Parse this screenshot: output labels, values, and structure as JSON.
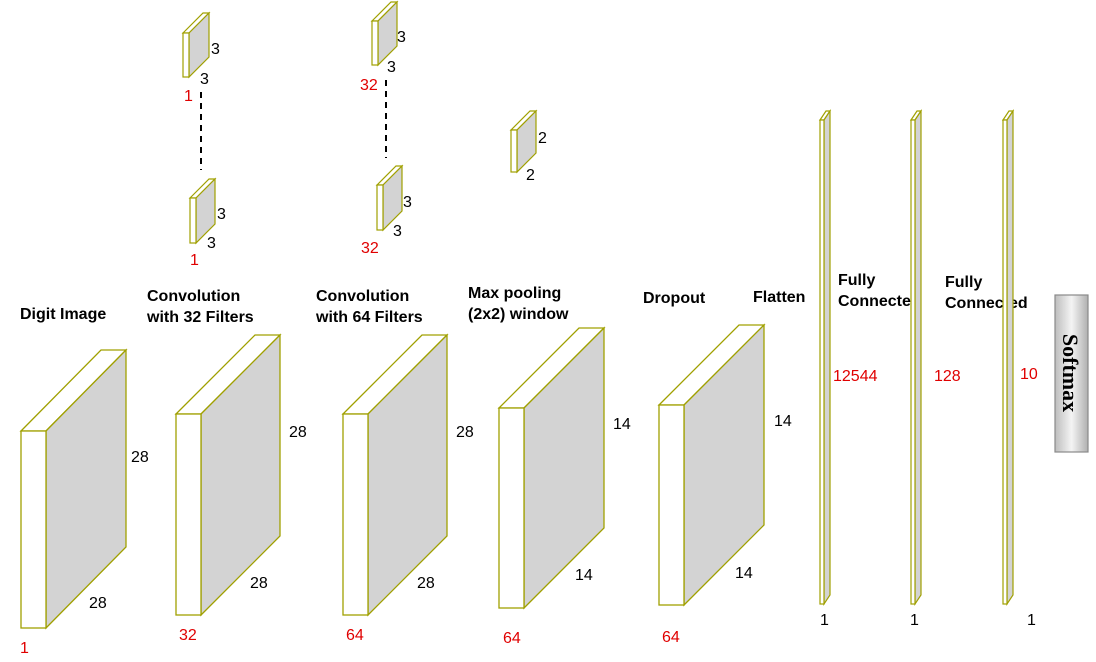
{
  "labels": {
    "digit_image": "Digit Image",
    "conv32_line1": "Convolution",
    "conv32_line2": "with 32 Filters",
    "conv64_line1": "Convolution",
    "conv64_line2": "with 64 Filters",
    "maxpool_line1": "Max pooling",
    "maxpool_line2": "(2x2) window",
    "dropout": "Dropout",
    "flatten": "Flatten",
    "fc1_line1": "Fully",
    "fc1_line2": "Connected",
    "fc2_line1": "Fully",
    "fc2_line2": "Connected",
    "softmax": "Softmax"
  },
  "blocks": {
    "input": {
      "height": "28",
      "width": "28",
      "depth": "1"
    },
    "conv32": {
      "height": "28",
      "width": "28",
      "depth": "32"
    },
    "conv64": {
      "height": "28",
      "width": "28",
      "depth": "64"
    },
    "maxpool": {
      "height": "14",
      "width": "14",
      "depth": "64"
    },
    "dropout": {
      "height": "14",
      "width": "14",
      "depth": "64"
    }
  },
  "dense": {
    "flatten": {
      "units": "12544",
      "depth": "1"
    },
    "fc1": {
      "units": "128",
      "depth": "1"
    },
    "fc2": {
      "units": "10",
      "depth": "1"
    }
  },
  "kernels": {
    "conv32_top": {
      "h": "3",
      "w": "3",
      "idx": "1"
    },
    "conv32_bottom": {
      "h": "3",
      "w": "3",
      "idx": "1"
    },
    "conv64_top": {
      "h": "3",
      "w": "3",
      "idx": "32"
    },
    "conv64_bottom": {
      "h": "3",
      "w": "3",
      "idx": "32"
    },
    "pool": {
      "h": "2",
      "w": "2"
    }
  },
  "colors": {
    "outline": "#a0a000",
    "front_face": "#ffffff",
    "side_face": "#d3d3d3",
    "red_text": "#e00000"
  }
}
